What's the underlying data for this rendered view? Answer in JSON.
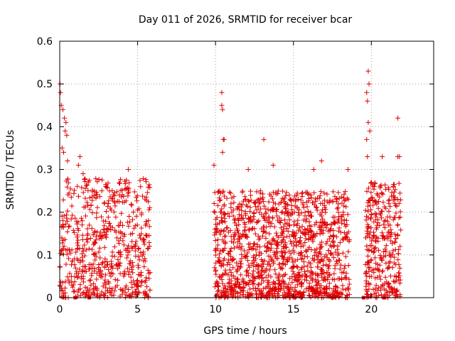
{
  "chart_data": {
    "type": "scatter",
    "title": "Day 011 of 2026, SRMTID for receiver bcar",
    "xlabel": "GPS time / hours",
    "ylabel": "SRMTID / TECUs",
    "xlim": [
      0,
      24
    ],
    "ylim": [
      0,
      0.6
    ],
    "xticks": [
      0,
      5,
      10,
      15,
      20
    ],
    "xtick_labels": [
      "0",
      "5",
      "10",
      "15",
      "20"
    ],
    "yticks": [
      0,
      0.1,
      0.2,
      0.3,
      0.4,
      0.5,
      0.6
    ],
    "ytick_labels": [
      "0",
      "0.1",
      "0.2",
      "0.3",
      "0.4",
      "0.5",
      "0.6"
    ],
    "grid": true,
    "marker": "+",
    "series": [
      {
        "name": "SRMTID",
        "color": "#e00000",
        "clusters": [
          {
            "x_range": [
              0.0,
              5.8
            ],
            "y_range": [
              0.0,
              0.28
            ],
            "count": 620,
            "seed": 11
          },
          {
            "x_range": [
              9.9,
              18.6
            ],
            "y_range": [
              0.0,
              0.25
            ],
            "count": 1350,
            "seed": 23
          },
          {
            "x_range": [
              19.6,
              21.9
            ],
            "y_range": [
              0.0,
              0.27
            ],
            "count": 330,
            "seed": 37
          }
        ],
        "points": [
          [
            0.02,
            0.5
          ],
          [
            0.05,
            0.48
          ],
          [
            0.1,
            0.45
          ],
          [
            0.2,
            0.44
          ],
          [
            0.3,
            0.42
          ],
          [
            0.35,
            0.39
          ],
          [
            0.45,
            0.38
          ],
          [
            0.4,
            0.41
          ],
          [
            0.15,
            0.35
          ],
          [
            0.25,
            0.34
          ],
          [
            0.5,
            0.32
          ],
          [
            1.3,
            0.33
          ],
          [
            1.2,
            0.31
          ],
          [
            1.5,
            0.29
          ],
          [
            4.4,
            0.3
          ],
          [
            10.4,
            0.48
          ],
          [
            10.4,
            0.45
          ],
          [
            10.45,
            0.44
          ],
          [
            10.5,
            0.37
          ],
          [
            10.55,
            0.37
          ],
          [
            10.45,
            0.34
          ],
          [
            9.9,
            0.31
          ],
          [
            13.1,
            0.37
          ],
          [
            13.7,
            0.31
          ],
          [
            12.1,
            0.3
          ],
          [
            16.3,
            0.3
          ],
          [
            16.8,
            0.32
          ],
          [
            18.5,
            0.3
          ],
          [
            19.8,
            0.53
          ],
          [
            19.85,
            0.5
          ],
          [
            19.7,
            0.48
          ],
          [
            19.75,
            0.46
          ],
          [
            19.8,
            0.41
          ],
          [
            19.9,
            0.39
          ],
          [
            19.7,
            0.37
          ],
          [
            19.75,
            0.33
          ],
          [
            20.7,
            0.33
          ],
          [
            21.7,
            0.42
          ],
          [
            21.8,
            0.33
          ],
          [
            21.7,
            0.33
          ]
        ],
        "bottom_markers_x": [
          1.0,
          1.9,
          19.5,
          20.8
        ]
      }
    ]
  }
}
